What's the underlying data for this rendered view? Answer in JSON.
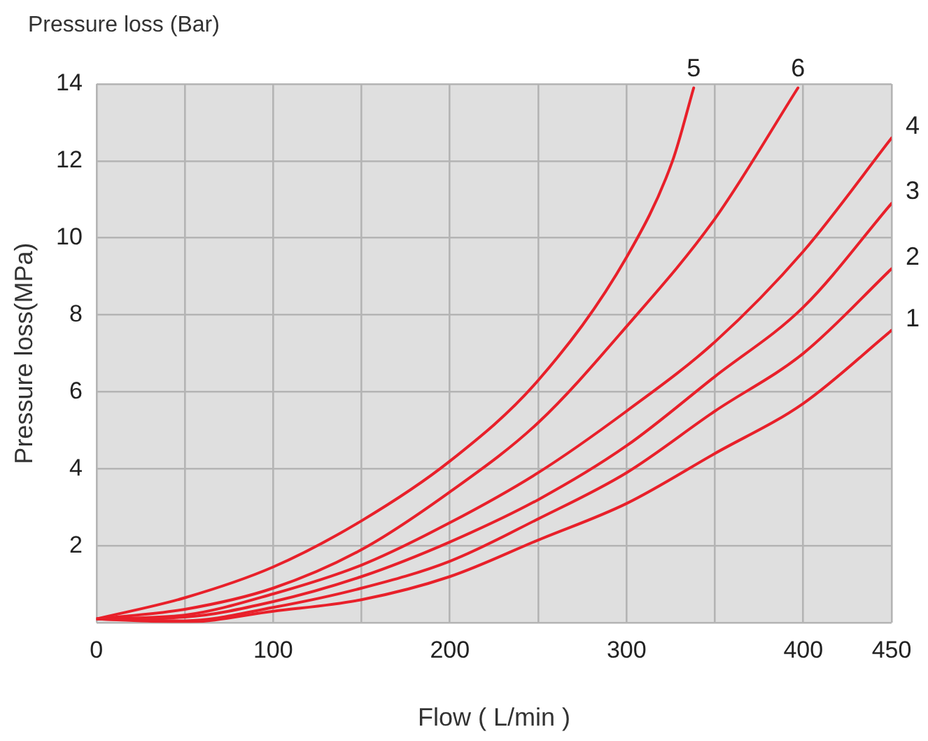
{
  "chart_data": {
    "type": "line",
    "title": "Pressure loss (Bar)",
    "xlabel": "Flow ( L/min )",
    "ylabel": "Pressure loss(MPa)",
    "xlim": [
      0,
      450
    ],
    "xticks": [
      0,
      {
        "value": 50,
        "label": null
      },
      100,
      {
        "value": 150,
        "label": null
      },
      200,
      {
        "value": 250,
        "label": null
      },
      300,
      {
        "value": 350,
        "label": null
      },
      400,
      450
    ],
    "ylim": [
      0,
      14
    ],
    "yticks": [
      {
        "value": 0,
        "label": null
      },
      2,
      4,
      6,
      8,
      10,
      12,
      14
    ],
    "grid": true,
    "legend": false,
    "marker": "none",
    "line_style": "solid",
    "series": [
      {
        "name": "1",
        "color": "#e8202a",
        "x": [
          0,
          50,
          100,
          150,
          200,
          250,
          300,
          350,
          400,
          450
        ],
        "values": [
          0.1,
          0.02,
          0.3,
          0.6,
          1.2,
          2.15,
          3.1,
          4.4,
          5.7,
          7.6
        ]
      },
      {
        "name": "2",
        "color": "#e8202a",
        "x": [
          0,
          50,
          100,
          150,
          200,
          250,
          300,
          350,
          400,
          450
        ],
        "values": [
          0.1,
          0.05,
          0.4,
          0.9,
          1.6,
          2.7,
          3.9,
          5.5,
          7.0,
          9.2
        ]
      },
      {
        "name": "3",
        "color": "#e8202a",
        "x": [
          0,
          50,
          100,
          150,
          200,
          250,
          300,
          350,
          400,
          450
        ],
        "values": [
          0.1,
          0.15,
          0.55,
          1.2,
          2.1,
          3.2,
          4.6,
          6.4,
          8.2,
          10.9
        ]
      },
      {
        "name": "4",
        "color": "#e8202a",
        "x": [
          0,
          50,
          100,
          150,
          200,
          250,
          300,
          350,
          400,
          450
        ],
        "values": [
          0.1,
          0.2,
          0.75,
          1.5,
          2.6,
          3.9,
          5.5,
          7.3,
          9.65,
          12.6
        ]
      },
      {
        "name": "5",
        "color": "#e8202a",
        "x": [
          0,
          50,
          100,
          150,
          200,
          250,
          300,
          326,
          338
        ],
        "values": [
          0.1,
          0.65,
          1.45,
          2.65,
          4.2,
          6.3,
          9.5,
          12,
          13.9
        ]
      },
      {
        "name": "6",
        "color": "#e8202a",
        "x": [
          0,
          50,
          100,
          150,
          200,
          250,
          300,
          350,
          397
        ],
        "values": [
          0.1,
          0.35,
          0.9,
          1.9,
          3.4,
          5.2,
          7.7,
          10.5,
          13.9
        ]
      }
    ]
  }
}
